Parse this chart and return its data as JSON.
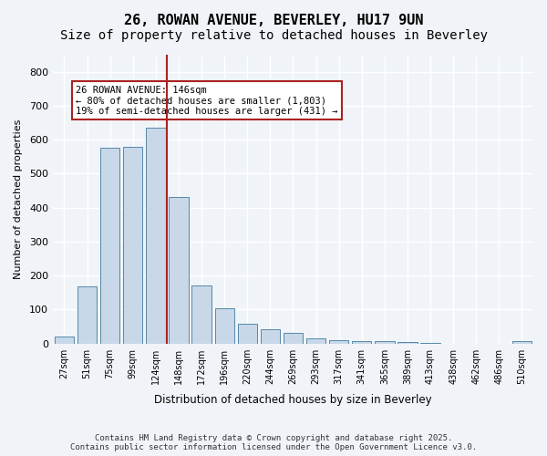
{
  "title1": "26, ROWAN AVENUE, BEVERLEY, HU17 9UN",
  "title2": "Size of property relative to detached houses in Beverley",
  "xlabel": "Distribution of detached houses by size in Beverley",
  "ylabel": "Number of detached properties",
  "categories": [
    "27sqm",
    "51sqm",
    "75sqm",
    "99sqm",
    "124sqm",
    "148sqm",
    "172sqm",
    "196sqm",
    "220sqm",
    "244sqm",
    "269sqm",
    "293sqm",
    "317sqm",
    "341sqm",
    "365sqm",
    "389sqm",
    "413sqm",
    "438sqm",
    "462sqm",
    "486sqm",
    "510sqm"
  ],
  "values": [
    20,
    168,
    575,
    578,
    635,
    430,
    170,
    105,
    58,
    42,
    30,
    15,
    11,
    8,
    8,
    5,
    3,
    0,
    0,
    0,
    7
  ],
  "bar_color": "#c8d8e8",
  "bar_edge_color": "#5588aa",
  "vline_x": 5,
  "vline_color": "#aa2222",
  "annotation_text": "26 ROWAN AVENUE: 146sqm\n← 80% of detached houses are smaller (1,803)\n19% of semi-detached houses are larger (431) →",
  "annotation_box_color": "#aa2222",
  "ylim": [
    0,
    850
  ],
  "yticks": [
    0,
    100,
    200,
    300,
    400,
    500,
    600,
    700,
    800
  ],
  "footer1": "Contains HM Land Registry data © Crown copyright and database right 2025.",
  "footer2": "Contains public sector information licensed under the Open Government Licence v3.0.",
  "bg_color": "#f0f4f8",
  "plot_bg_color": "#f0f4f8",
  "grid_color": "#ffffff",
  "title_fontsize": 11,
  "subtitle_fontsize": 10
}
